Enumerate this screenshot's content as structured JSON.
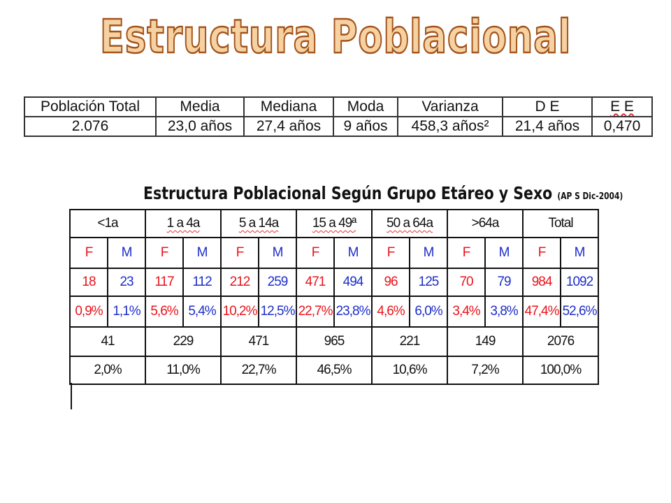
{
  "title": "Estructura Poblacional",
  "summary": {
    "headers": [
      "Población Total",
      "Media",
      "Mediana",
      "Moda",
      "Varianza",
      "D E",
      "E E"
    ],
    "values": [
      "2.076",
      "23,0 años",
      "27,4 años",
      "9 años",
      "458,3 años²",
      "21,4 años",
      "0,470"
    ]
  },
  "groups_table": {
    "title": "Estructura Poblacional Según Grupo Etáreo y Sexo",
    "source": "(AP S Dic-2004)",
    "age_groups": [
      "<1a",
      "1 a 4a",
      "5 a 14a",
      "15 a 49ª",
      "50 a 64a",
      ">64a",
      "Total"
    ],
    "sex_labels": [
      "F",
      "M"
    ],
    "counts": [
      "18",
      "23",
      "117",
      "112",
      "212",
      "259",
      "471",
      "494",
      "96",
      "125",
      "70",
      "79",
      "984",
      "1092"
    ],
    "percents": [
      "0,9%",
      "1,1%",
      "5,6%",
      "5,4%",
      "10,2%",
      "12,5%",
      "22,7%",
      "23,8%",
      "4,6%",
      "6,0%",
      "3,4%",
      "3,8%",
      "47,4%",
      "52,6%"
    ],
    "group_totals": [
      "41",
      "229",
      "471",
      "965",
      "221",
      "149",
      "2076"
    ],
    "group_percents": [
      "2,0%",
      "11,0%",
      "22,7%",
      "46,5%",
      "10,6%",
      "7,2%",
      "100,0%"
    ]
  },
  "colors": {
    "female": "#e8141c",
    "male": "#1d2ec8",
    "title_fill": "#f6d2a2",
    "title_outline": "#a3541c"
  }
}
